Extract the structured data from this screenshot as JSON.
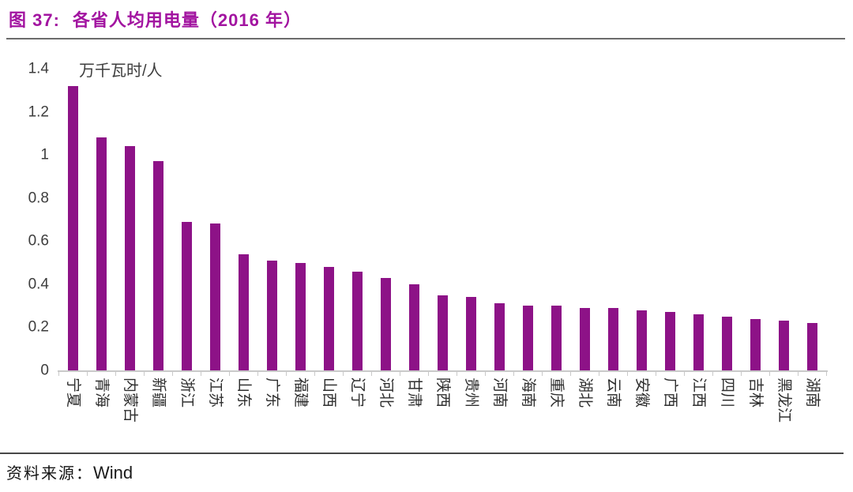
{
  "header": {
    "figure_label": "图 37:",
    "title": "各省人均用电量（2016 年）",
    "accent_color": "#a214a0"
  },
  "source": {
    "prefix": "资料来源：",
    "name": "Wind"
  },
  "chart_data": {
    "type": "bar",
    "title": "各省人均用电量（2016 年）",
    "unit_label": "万千瓦时/人",
    "bar_color": "#8d1287",
    "axis_color": "#c9c9c9",
    "grid": false,
    "legend": "none",
    "ylim": [
      0,
      1.4
    ],
    "y_tick_labels": [
      "1.4",
      "1.2",
      "1",
      "0.8",
      "0.6",
      "0.4",
      "0.2",
      "0"
    ],
    "categories": [
      "宁夏",
      "青海",
      "内蒙古",
      "新疆",
      "浙江",
      "江苏",
      "山东",
      "广东",
      "福建",
      "山西",
      "辽宁",
      "河北",
      "甘肃",
      "陕西",
      "贵州",
      "河南",
      "海南",
      "重庆",
      "湖北",
      "云南",
      "安徽",
      "广西",
      "江西",
      "四川",
      "吉林",
      "黑龙江",
      "湖南"
    ],
    "values": [
      1.32,
      1.08,
      1.04,
      0.97,
      0.69,
      0.68,
      0.54,
      0.51,
      0.5,
      0.48,
      0.46,
      0.43,
      0.4,
      0.35,
      0.34,
      0.31,
      0.3,
      0.3,
      0.29,
      0.29,
      0.28,
      0.27,
      0.26,
      0.25,
      0.24,
      0.23,
      0.22
    ]
  }
}
